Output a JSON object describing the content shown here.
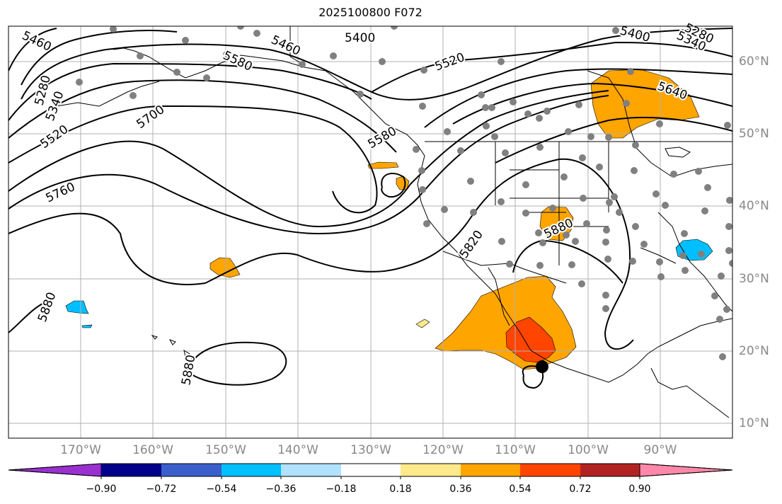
{
  "title": "2025100800 F072",
  "lon_labels": [
    "170°W",
    "160°W",
    "150°W",
    "140°W",
    "130°W",
    "120°W",
    "110°W",
    "100°W",
    "90°W"
  ],
  "lat_labels": [
    "60°N",
    "50°N",
    "40°N",
    "30°N",
    "20°N",
    "10°N"
  ],
  "colorbar": {
    "ticks": [
      "−0.90",
      "−0.72",
      "−0.54",
      "−0.36",
      "−0.18",
      "0.18",
      "0.36",
      "0.54",
      "0.72",
      "0.90"
    ],
    "colors": [
      "#9b30d0",
      "#00008b",
      "#3a5fcd",
      "#00bfff",
      "#b0e2ff",
      "#ffffff",
      "#ffe98a",
      "#ffa500",
      "#ff4500",
      "#b22222",
      "#ff88aa"
    ]
  },
  "contour_labels": [
    "5460",
    "5400",
    "5460",
    "5580",
    "5520",
    "5400",
    "5340",
    "5280",
    "5280",
    "5340",
    "5520",
    "5700",
    "5760",
    "5580",
    "5640",
    "5820",
    "5880",
    "5880",
    "5880"
  ],
  "colors": {
    "contour": "#000000",
    "station": "#808080",
    "grid": "#b0b0b0"
  }
}
